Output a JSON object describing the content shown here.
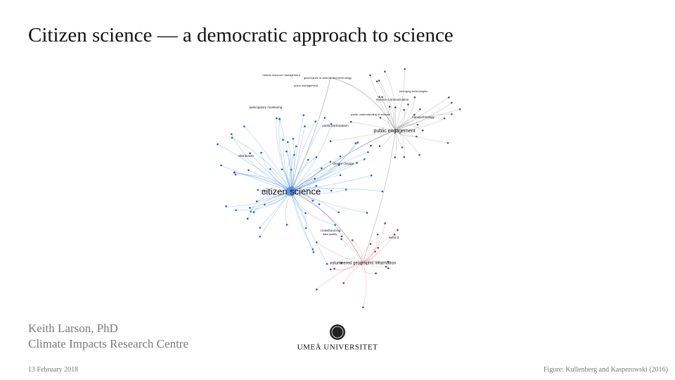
{
  "title": "Citizen science — a democratic approach to science",
  "figure": {
    "nodes": [
      "citizen science",
      "public engagement",
      "volunteered geographic information",
      "public participation",
      "science communication",
      "nanotechnology",
      "crowdsourcing",
      "web2.0",
      "participatory monitoring",
      "climate change",
      "distribution",
      "natural resource management",
      "governance of science and technology",
      "forest management",
      "public understanding of science",
      "emerging technologies",
      "data quality"
    ]
  },
  "author": {
    "name": "Keith Larson, PhD",
    "affiliation": "Climate Impacts Research Centre"
  },
  "logo": "UMEÅ UNIVERSITET",
  "date": "13 February 2018",
  "credit": "Figure: Kullenberg and Kasperowski (2016)"
}
